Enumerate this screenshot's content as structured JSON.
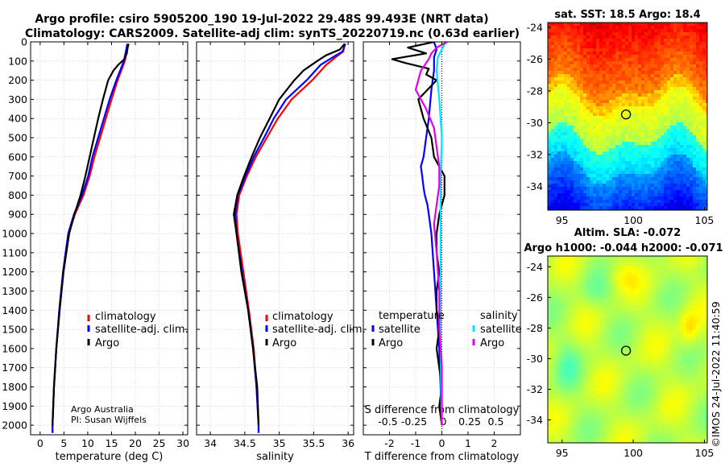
{
  "figure": {
    "title_line1": "Argo profile: csiro 5905200_190 19-Jul-2022 29.48S 99.493E (NRT data)",
    "title_line2": "Climatology: CARS2009. Satellite-adj clim: synTS_20220719.nc (0.63d earlier)",
    "credit_line1": "Argo Australia",
    "credit_line2": "PI: Susan Wijffels",
    "imos_stamp": "©IMOS 24-Jul-2022 11:40:59"
  },
  "colors": {
    "climatology": "#ff0000",
    "satellite": "#0000ff",
    "argo": "#000000",
    "t_sat": "#0000ff",
    "s_sat": "#00e5ff",
    "s_argo": "#e600e6"
  },
  "chart_data": [
    {
      "id": "temperature",
      "type": "line",
      "xlabel": "temperature (deg C)",
      "ylabel": "",
      "xlim": [
        -2,
        31
      ],
      "ylim": [
        2050,
        0
      ],
      "xticks": [
        0,
        5,
        10,
        15,
        20,
        25,
        30
      ],
      "yticks": [
        0,
        100,
        200,
        300,
        400,
        500,
        600,
        700,
        800,
        900,
        1000,
        1100,
        1200,
        1300,
        1400,
        1500,
        1600,
        1700,
        1800,
        1900,
        2000
      ],
      "legend": [
        "climatology",
        "satellite-adj. clim.",
        "Argo"
      ],
      "series": [
        {
          "name": "climatology",
          "depth": [
            10,
            50,
            100,
            200,
            300,
            400,
            500,
            600,
            700,
            800,
            900,
            1000,
            1200,
            1400,
            1600,
            1800,
            2000,
            2040
          ],
          "values": [
            18.4,
            18.2,
            17.8,
            16.3,
            15.0,
            13.8,
            12.6,
            11.4,
            10.4,
            9.1,
            7.3,
            6.0,
            4.9,
            4.1,
            3.4,
            2.9,
            2.6,
            2.6
          ]
        },
        {
          "name": "satellite-adj. clim.",
          "depth": [
            10,
            50,
            100,
            200,
            300,
            400,
            500,
            600,
            700,
            800,
            900,
            1000,
            1200,
            1400,
            1600,
            1800,
            2000,
            2040
          ],
          "values": [
            18.3,
            18.0,
            17.6,
            16.0,
            14.6,
            13.4,
            12.2,
            11.0,
            10.1,
            8.8,
            7.1,
            5.9,
            4.8,
            4.0,
            3.4,
            2.9,
            2.6,
            2.6
          ]
        },
        {
          "name": "Argo",
          "depth": [
            10,
            30,
            60,
            90,
            120,
            150,
            200,
            300,
            400,
            500,
            600,
            700,
            800,
            900,
            1000,
            1200,
            1400,
            1600,
            1800,
            2000
          ],
          "values": [
            18.6,
            18.4,
            18.2,
            17.7,
            16.4,
            15.4,
            14.3,
            13.2,
            12.2,
            11.3,
            10.4,
            9.5,
            8.5,
            7.2,
            6.1,
            4.9,
            4.1,
            3.4,
            2.9,
            2.6
          ]
        }
      ]
    },
    {
      "id": "salinity",
      "type": "line",
      "xlabel": "salinity",
      "ylabel": "",
      "xlim": [
        33.8,
        36.08
      ],
      "ylim": [
        2050,
        0
      ],
      "xticks": [
        34,
        34.5,
        35,
        35.5,
        36
      ],
      "xticklabels": [
        "34",
        "34.5",
        "35",
        "35.5",
        "36"
      ],
      "legend": [
        "climatology",
        "satellite-adj. clim.",
        "Argo"
      ],
      "series": [
        {
          "name": "climatology",
          "depth": [
            10,
            50,
            80,
            120,
            200,
            300,
            400,
            500,
            600,
            700,
            800,
            900,
            1000,
            1200,
            1400,
            1600,
            1800,
            2000,
            2040
          ],
          "values": [
            35.95,
            35.93,
            35.82,
            35.68,
            35.48,
            35.18,
            34.98,
            34.82,
            34.66,
            34.53,
            34.42,
            34.38,
            34.4,
            34.48,
            34.56,
            34.63,
            34.67,
            34.7,
            34.7
          ]
        },
        {
          "name": "satellite-adj. clim.",
          "depth": [
            10,
            50,
            80,
            120,
            200,
            300,
            400,
            500,
            600,
            700,
            800,
            900,
            1000,
            1200,
            1400,
            1600,
            1800,
            2000,
            2040
          ],
          "values": [
            35.96,
            35.92,
            35.78,
            35.6,
            35.4,
            35.1,
            34.92,
            34.78,
            34.63,
            34.51,
            34.4,
            34.36,
            34.38,
            34.46,
            34.55,
            34.62,
            34.67,
            34.7,
            34.7
          ]
        },
        {
          "name": "Argo",
          "depth": [
            10,
            40,
            70,
            100,
            150,
            200,
            300,
            400,
            500,
            600,
            700,
            800,
            900,
            1000,
            1200,
            1400,
            1600,
            1800,
            2000
          ],
          "values": [
            35.95,
            35.88,
            35.68,
            35.55,
            35.35,
            35.22,
            35.0,
            34.86,
            34.72,
            34.6,
            34.49,
            34.39,
            34.34,
            34.38,
            34.45,
            34.55,
            34.62,
            34.68,
            34.7
          ]
        }
      ]
    },
    {
      "id": "difference",
      "type": "line",
      "xlabel": "T difference from climatology",
      "top_axis_label": "S difference from climatology",
      "xlim": [
        -3,
        3
      ],
      "ylim": [
        2050,
        0
      ],
      "xticks": [
        -2,
        -1,
        0,
        1,
        2
      ],
      "top_xticks": [
        -2,
        -1,
        0,
        1,
        2
      ],
      "top_xticklabels": [
        "-0.5",
        "-0.25",
        "0",
        "0.25",
        "0.5"
      ],
      "legend_groups": [
        {
          "header": "temperature",
          "items": [
            "satellite",
            "Argo"
          ]
        },
        {
          "header": "salinity",
          "items": [
            "satellite",
            "Argo"
          ]
        }
      ],
      "series": [
        {
          "name": "temperature satellite",
          "depth": [
            0,
            40,
            80,
            150,
            250,
            400,
            500,
            600,
            650,
            700,
            760,
            800,
            850,
            900,
            1000,
            1200,
            1400,
            1600,
            1800,
            2000
          ],
          "values": [
            -0.3,
            -0.2,
            -0.3,
            -0.3,
            -0.4,
            -0.5,
            -0.6,
            -0.7,
            -0.8,
            -0.75,
            -0.7,
            -0.65,
            -0.55,
            -0.5,
            -0.4,
            -0.3,
            -0.2,
            -0.1,
            -0.05,
            0.0
          ]
        },
        {
          "name": "temperature Argo",
          "depth": [
            0,
            30,
            60,
            90,
            110,
            140,
            170,
            200,
            300,
            400,
            500,
            600,
            700,
            800,
            900,
            1000,
            1100,
            1200,
            1300,
            1400,
            1500,
            1600,
            1700,
            1800,
            1900,
            2000
          ],
          "values": [
            -0.3,
            -1.3,
            -0.6,
            -1.9,
            -1.4,
            -0.5,
            -0.6,
            -0.2,
            -0.9,
            -0.7,
            -0.4,
            -0.3,
            0.1,
            0.1,
            -0.1,
            -0.2,
            -0.2,
            -0.1,
            -0.2,
            -0.2,
            -0.1,
            -0.2,
            -0.1,
            0.0,
            -0.1,
            0.0
          ]
        },
        {
          "name": "salinity satellite",
          "depth": [
            0,
            40,
            80,
            150,
            300,
            500,
            700,
            900,
            1200,
            1500,
            1800,
            2000
          ],
          "values": [
            0.15,
            0.0,
            -0.15,
            -0.2,
            -0.1,
            0.0,
            -0.05,
            -0.05,
            -0.05,
            -0.05,
            -0.03,
            0.0
          ]
        },
        {
          "name": "salinity Argo",
          "depth": [
            0,
            30,
            60,
            90,
            150,
            250,
            350,
            450,
            550,
            650,
            750,
            850,
            950,
            1100,
            1300,
            1500,
            1700,
            1900,
            2000
          ],
          "values": [
            0.2,
            -0.2,
            -0.4,
            -0.5,
            -0.8,
            -1.0,
            -0.6,
            -0.3,
            -0.2,
            -0.1,
            -0.1,
            -0.2,
            -0.3,
            -0.2,
            -0.1,
            -0.1,
            0.0,
            0.0,
            0.0
          ]
        }
      ]
    },
    {
      "id": "sst_map",
      "type": "heatmap",
      "title": "sat. SST: 18.5 Argo: 18.4",
      "xlim": [
        94,
        105.2
      ],
      "ylim": [
        -35.5,
        -23.7
      ],
      "xticks": [
        95,
        100,
        105
      ],
      "yticks": [
        -24,
        -26,
        -28,
        -30,
        -32,
        -34
      ],
      "marker": {
        "lon": 99.493,
        "lat": -29.48
      }
    },
    {
      "id": "sla_map",
      "type": "heatmap",
      "title_line1": "Altim. SLA: -0.072",
      "title_line2": "Argo h1000: -0.044 h2000: -0.071",
      "xlim": [
        94,
        105.2
      ],
      "ylim": [
        -35.5,
        -23.3
      ],
      "xticks": [
        95,
        100,
        105
      ],
      "yticks": [
        -24,
        -26,
        -28,
        -30,
        -32,
        -34
      ],
      "marker": {
        "lon": 99.493,
        "lat": -29.48
      }
    }
  ]
}
